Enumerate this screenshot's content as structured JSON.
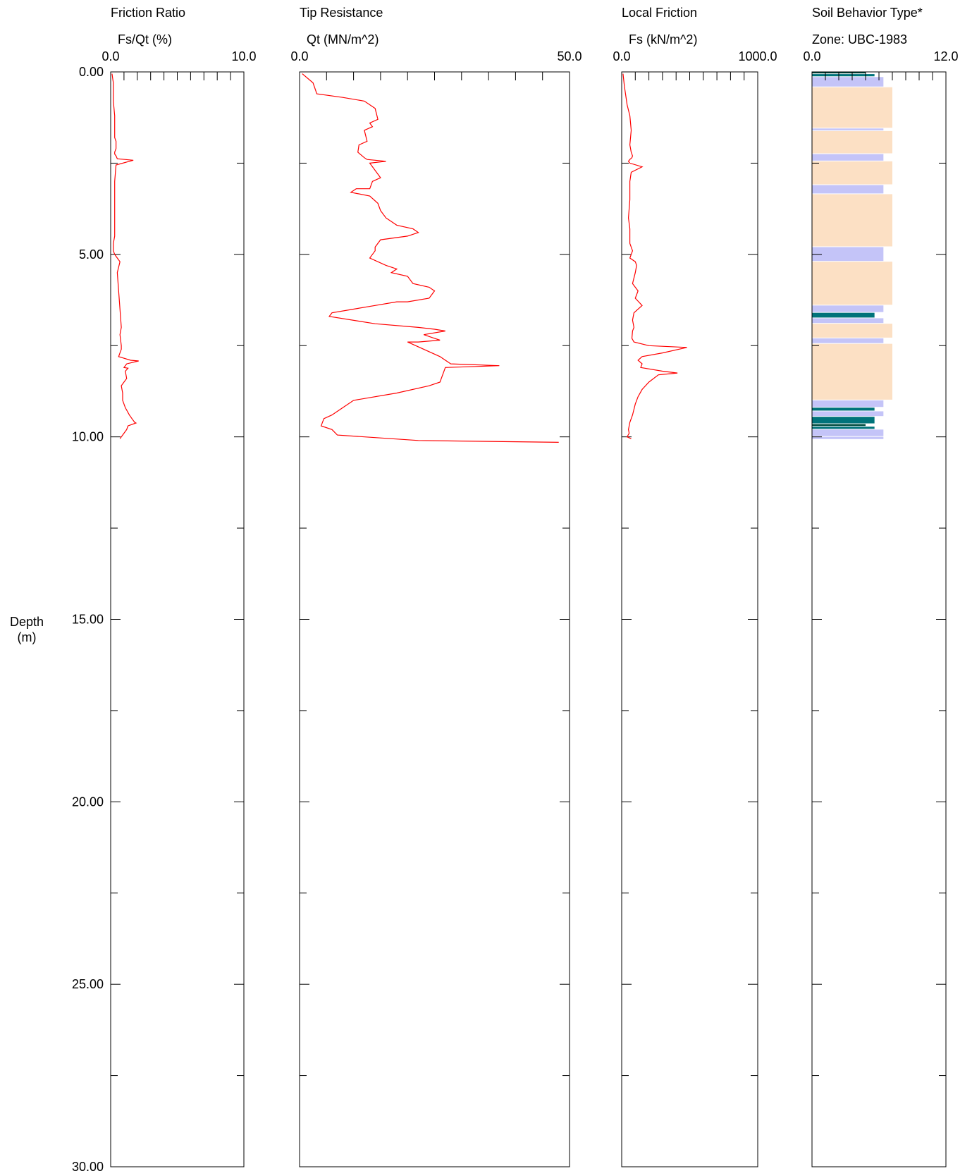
{
  "depth_axis": {
    "label_line1": "Depth",
    "label_line2": "(m)",
    "ticks": [
      "0.00",
      "5.00",
      "10.00",
      "15.00",
      "20.00",
      "25.00",
      "30.00"
    ],
    "range": [
      0,
      30
    ]
  },
  "chart_data": [
    {
      "type": "line",
      "title": "Friction Ratio",
      "subtitle": "Fs/Qt (%)",
      "x_range": [
        0,
        10
      ],
      "x_tick_labels": [
        "0.0",
        "10.0"
      ],
      "line_color": "#ff0000",
      "series": [
        {
          "x": [
            0.1,
            0.2,
            0.2,
            0.3,
            0.3,
            0.3,
            0.4,
            0.4,
            0.4,
            0.3,
            0.3,
            0.4,
            0.5,
            1.7,
            0.4,
            0.3,
            0.3,
            0.3,
            0.3,
            0.3,
            0.2,
            0.2,
            0.3,
            0.5,
            0.7,
            0.5,
            0.6,
            0.7,
            0.8,
            0.7,
            0.8,
            0.8,
            0.7,
            0.6,
            1.5,
            2.1,
            1.2,
            1.0,
            1.3,
            1.1,
            1.2,
            0.8,
            0.9,
            0.9,
            1.1,
            1.4,
            1.6,
            1.8,
            1.9,
            1.3,
            1.2,
            1.0,
            0.7
          ],
          "y": [
            0.05,
            0.3,
            0.8,
            1.2,
            1.5,
            1.8,
            1.9,
            2.0,
            2.1,
            2.2,
            2.25,
            2.3,
            2.38,
            2.42,
            2.55,
            3.0,
            3.5,
            3.9,
            4.2,
            4.5,
            4.7,
            4.9,
            5.0,
            5.1,
            5.2,
            5.5,
            6.0,
            6.5,
            7.0,
            7.2,
            7.5,
            7.6,
            7.7,
            7.8,
            7.9,
            7.92,
            8.0,
            8.1,
            8.12,
            8.2,
            8.4,
            8.6,
            8.8,
            9.0,
            9.2,
            9.4,
            9.5,
            9.6,
            9.62,
            9.7,
            9.8,
            9.9,
            10.05
          ]
        }
      ]
    },
    {
      "type": "line",
      "title": "Tip Resistance",
      "subtitle": "Qt (MN/m^2)",
      "x_range": [
        0,
        50
      ],
      "x_tick_labels": [
        "0.0",
        "50.0"
      ],
      "line_color": "#ff0000",
      "series": [
        {
          "x": [
            0.5,
            2.5,
            3.2,
            8,
            12,
            14,
            14.5,
            13,
            13.5,
            12,
            12.5,
            11,
            10.8,
            12,
            12.5,
            16,
            13,
            15,
            13.5,
            13,
            10.5,
            9.5,
            13,
            14.5,
            15,
            16,
            18,
            21,
            22,
            20,
            15,
            14,
            14,
            13.5,
            13,
            16,
            18,
            17,
            20,
            21,
            24,
            25,
            24,
            20,
            18,
            14,
            10,
            6,
            5.5,
            14,
            22,
            25,
            27,
            23,
            25,
            26,
            22,
            20,
            26,
            28,
            37,
            27,
            26,
            24,
            18,
            10,
            8,
            6,
            4.5,
            4,
            6,
            7,
            22,
            48
          ],
          "y": [
            0.05,
            0.3,
            0.6,
            0.7,
            0.8,
            1.0,
            1.3,
            1.4,
            1.5,
            1.6,
            1.9,
            2.0,
            2.2,
            2.35,
            2.4,
            2.45,
            2.5,
            2.9,
            3.0,
            3.2,
            3.2,
            3.3,
            3.4,
            3.6,
            3.8,
            4.0,
            4.2,
            4.3,
            4.4,
            4.5,
            4.6,
            4.8,
            4.9,
            5.0,
            5.1,
            5.3,
            5.4,
            5.5,
            5.6,
            5.8,
            5.9,
            6.0,
            6.2,
            6.3,
            6.3,
            6.4,
            6.5,
            6.6,
            6.7,
            6.9,
            7.0,
            7.05,
            7.1,
            7.2,
            7.3,
            7.35,
            7.4,
            7.4,
            7.8,
            8.0,
            8.05,
            8.1,
            8.5,
            8.6,
            8.8,
            9.0,
            9.2,
            9.4,
            9.5,
            9.7,
            9.8,
            9.95,
            10.1,
            10.15
          ]
        }
      ]
    },
    {
      "type": "line",
      "title": "Local Friction",
      "subtitle": "Fs (kN/m^2)",
      "x_range": [
        0,
        1000
      ],
      "x_tick_labels": [
        "0.0",
        "1000.0"
      ],
      "line_color": "#ff0000",
      "series": [
        {
          "x": [
            10,
            20,
            40,
            60,
            70,
            60,
            70,
            80,
            75,
            60,
            50,
            60,
            150,
            70,
            60,
            60,
            50,
            60,
            60,
            60,
            80,
            60,
            100,
            110,
            100,
            80,
            120,
            100,
            150,
            90,
            80,
            90,
            80,
            75,
            90,
            200,
            480,
            300,
            150,
            120,
            150,
            140,
            300,
            410,
            270,
            200,
            150,
            120,
            100,
            80,
            60,
            50,
            55,
            40,
            70
          ],
          "y": [
            0.05,
            0.4,
            0.9,
            1.2,
            1.6,
            2.0,
            2.2,
            2.3,
            2.35,
            2.4,
            2.45,
            2.5,
            2.6,
            2.75,
            3.0,
            3.5,
            4.0,
            4.3,
            4.5,
            4.7,
            4.9,
            5.1,
            5.2,
            5.3,
            5.5,
            5.8,
            6.0,
            6.2,
            6.4,
            6.6,
            6.8,
            7.0,
            7.1,
            7.3,
            7.4,
            7.5,
            7.55,
            7.7,
            7.8,
            7.9,
            8.0,
            8.1,
            8.2,
            8.25,
            8.3,
            8.5,
            8.7,
            8.9,
            9.1,
            9.4,
            9.6,
            9.8,
            9.9,
            10.0,
            10.05
          ]
        }
      ]
    },
    {
      "type": "bar",
      "orientation": "horizontal",
      "title": "Soil Behavior Type*",
      "subtitle": "Zone: UBC-1983",
      "x_range": [
        0,
        12
      ],
      "x_tick_labels": [
        "0.0",
        "12.0"
      ],
      "zone_colors": {
        "6": "#004d40",
        "7": "#00737a",
        "8": "#c4c4f8",
        "9": "#fce0c4"
      },
      "bars": [
        {
          "top": 0.0,
          "bottom": 0.06,
          "zone": 6
        },
        {
          "top": 0.06,
          "bottom": 0.14,
          "zone": 7
        },
        {
          "top": 0.14,
          "bottom": 0.42,
          "zone": 8
        },
        {
          "top": 0.42,
          "bottom": 1.55,
          "zone": 9
        },
        {
          "top": 1.55,
          "bottom": 1.62,
          "zone": 8
        },
        {
          "top": 1.62,
          "bottom": 2.25,
          "zone": 9
        },
        {
          "top": 2.25,
          "bottom": 2.45,
          "zone": 8
        },
        {
          "top": 2.45,
          "bottom": 3.1,
          "zone": 9
        },
        {
          "top": 3.1,
          "bottom": 3.35,
          "zone": 8
        },
        {
          "top": 3.35,
          "bottom": 4.8,
          "zone": 9
        },
        {
          "top": 4.8,
          "bottom": 5.2,
          "zone": 8
        },
        {
          "top": 5.2,
          "bottom": 6.4,
          "zone": 9
        },
        {
          "top": 6.4,
          "bottom": 6.6,
          "zone": 8
        },
        {
          "top": 6.6,
          "bottom": 6.75,
          "zone": 7
        },
        {
          "top": 6.75,
          "bottom": 6.9,
          "zone": 8
        },
        {
          "top": 6.9,
          "bottom": 7.3,
          "zone": 9
        },
        {
          "top": 7.3,
          "bottom": 7.45,
          "zone": 8
        },
        {
          "top": 7.45,
          "bottom": 9.0,
          "zone": 9
        },
        {
          "top": 9.0,
          "bottom": 9.2,
          "zone": 8
        },
        {
          "top": 9.2,
          "bottom": 9.3,
          "zone": 7
        },
        {
          "top": 9.3,
          "bottom": 9.45,
          "zone": 8
        },
        {
          "top": 9.45,
          "bottom": 9.65,
          "zone": 7
        },
        {
          "top": 9.65,
          "bottom": 9.72,
          "zone": 6
        },
        {
          "top": 9.72,
          "bottom": 9.8,
          "zone": 7
        },
        {
          "top": 9.8,
          "bottom": 10.0,
          "zone": 8
        },
        {
          "top": 10.0,
          "bottom": 10.08,
          "zone": 8
        }
      ]
    }
  ]
}
